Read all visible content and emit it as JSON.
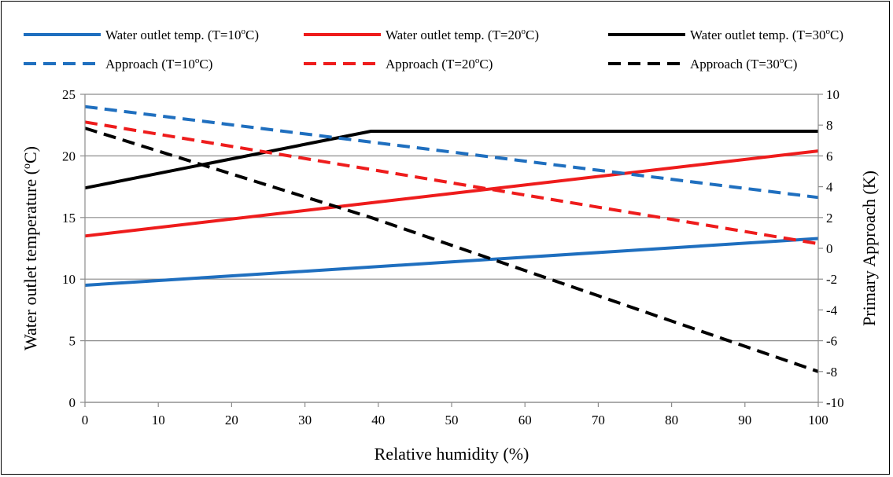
{
  "chart_data": {
    "type": "line",
    "title": "",
    "xlabel": "Relative humidity (%)",
    "ylabel_left_prefix": "Water outlet temperature (",
    "ylabel_left_sup": "o",
    "ylabel_left_suffix": "C)",
    "ylabel_right": "Primary Approach (K)",
    "xlim": [
      0,
      100
    ],
    "ylim_left": [
      0,
      25
    ],
    "ylim_right": [
      -10,
      10
    ],
    "x_ticks": [
      "0",
      "10",
      "20",
      "30",
      "40",
      "50",
      "60",
      "70",
      "80",
      "90",
      "100"
    ],
    "y_left_ticks": [
      "0",
      "5",
      "10",
      "15",
      "20",
      "25"
    ],
    "y_right_ticks": [
      "-10",
      "-8",
      "-6",
      "-4",
      "-2",
      "0",
      "2",
      "4",
      "6",
      "8",
      "10"
    ],
    "grid": "horizontal",
    "legend_position": "top",
    "series": [
      {
        "name_prefix": "Water outlet temp. (T=10",
        "name_sup": "o",
        "name_suffix": "C)",
        "axis": "left",
        "style": "solid",
        "color": "#1f6fbf",
        "x": [
          0,
          100
        ],
        "y": [
          9.5,
          13.3
        ]
      },
      {
        "name_prefix": "Water outlet temp. (T=20",
        "name_sup": "o",
        "name_suffix": "C)",
        "axis": "left",
        "style": "solid",
        "color": "#ee1c1c",
        "x": [
          0,
          100
        ],
        "y": [
          13.5,
          20.4
        ]
      },
      {
        "name_prefix": "Water outlet temp. (T=30",
        "name_sup": "o",
        "name_suffix": "C)",
        "axis": "left",
        "style": "solid",
        "color": "#000000",
        "x": [
          0,
          39,
          100
        ],
        "y": [
          17.4,
          22.0,
          22.0
        ]
      },
      {
        "name_prefix": "Approach (T=10",
        "name_sup": "o",
        "name_suffix": "C)",
        "axis": "right",
        "style": "dashed",
        "color": "#1f6fbf",
        "x": [
          0,
          100
        ],
        "y": [
          9.2,
          3.3
        ]
      },
      {
        "name_prefix": "Approach (T=20",
        "name_sup": "o",
        "name_suffix": "C)",
        "axis": "right",
        "style": "dashed",
        "color": "#ee1c1c",
        "x": [
          0,
          100
        ],
        "y": [
          8.2,
          0.3
        ]
      },
      {
        "name_prefix": "Approach (T=30",
        "name_sup": "o",
        "name_suffix": "C)",
        "axis": "right",
        "style": "dashed",
        "color": "#000000",
        "x": [
          0,
          39,
          100
        ],
        "y": [
          7.8,
          2.0,
          -8.0
        ]
      }
    ]
  }
}
